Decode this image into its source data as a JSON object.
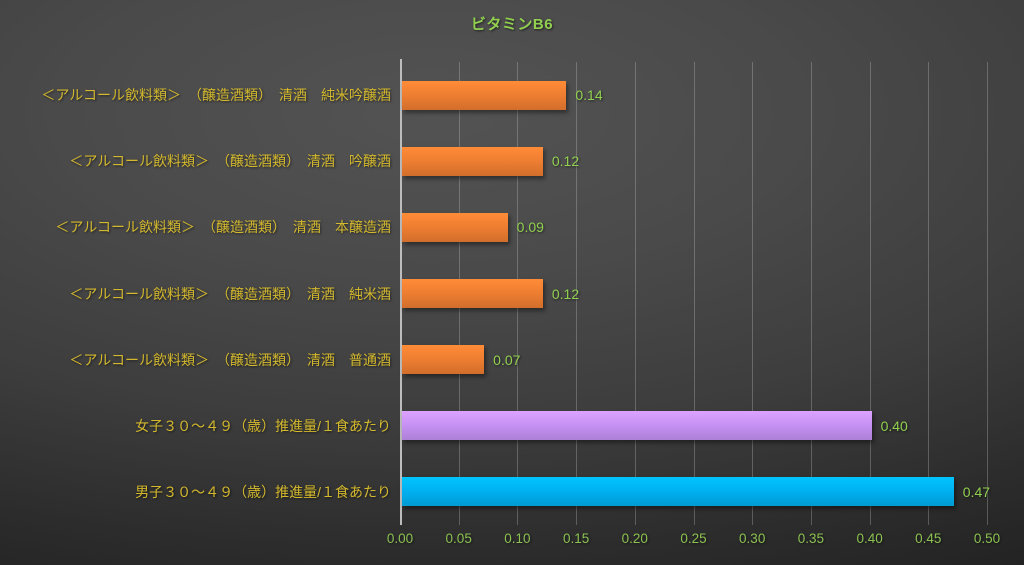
{
  "chart_data": {
    "type": "bar",
    "orientation": "horizontal",
    "title": "ビタミンB6",
    "categories": [
      "＜アルコール飲料類＞　（醸造酒類）　清酒　純米吟醸酒",
      "＜アルコール飲料類＞　（醸造酒類）　清酒　吟醸酒",
      "＜アルコール飲料類＞　（醸造酒類）　清酒　本醸造酒",
      "＜アルコール飲料類＞　（醸造酒類）　清酒　純米酒",
      "＜アルコール飲料類＞　（醸造酒類）　清酒　普通酒",
      "女子３０～４９（歳）推進量/１食あたり",
      "男子３０～４９（歳）推進量/１食あたり"
    ],
    "values": [
      0.14,
      0.12,
      0.09,
      0.12,
      0.07,
      0.4,
      0.47
    ],
    "data_labels": [
      "0.14",
      "0.12",
      "0.09",
      "0.12",
      "0.07",
      "0.40",
      "0.47"
    ],
    "bar_colors": [
      "#ED7D31",
      "#ED7D31",
      "#ED7D31",
      "#ED7D31",
      "#ED7D31",
      "#C591F3",
      "#00B0F0"
    ],
    "xlim": [
      0,
      0.5
    ],
    "x_ticks": [
      "0.00",
      "0.05",
      "0.10",
      "0.15",
      "0.20",
      "0.25",
      "0.30",
      "0.35",
      "0.40",
      "0.45",
      "0.50"
    ],
    "grid": true,
    "legend": "none",
    "colors": {
      "title_text": "#92D050",
      "value_labels": "#92D050",
      "axis_tick_labels": "#8CC152",
      "category_labels": "#D4B92E",
      "axis_line": "#BDBDBD",
      "gridline": "rgba(215,215,215,0.28)"
    }
  }
}
